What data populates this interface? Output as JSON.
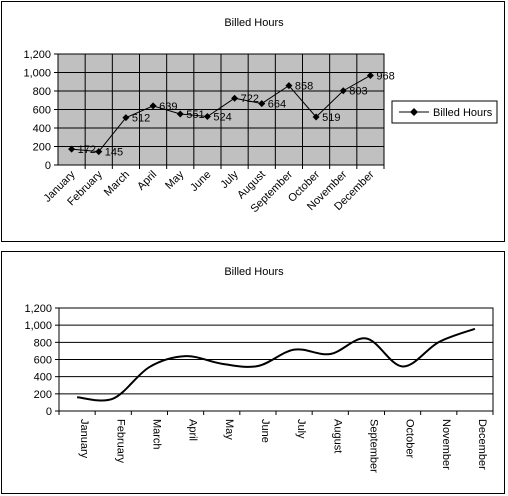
{
  "chart_data": [
    {
      "type": "line",
      "title": "Billed Hours",
      "categories": [
        "January",
        "February",
        "March",
        "April",
        "May",
        "June",
        "July",
        "August",
        "September",
        "October",
        "November",
        "December"
      ],
      "series": [
        {
          "name": "Billed Hours",
          "values": [
            172,
            145,
            512,
            639,
            551,
            524,
            722,
            664,
            858,
            519,
            803,
            968
          ]
        }
      ],
      "data_labels": [
        "172",
        "145",
        "512",
        "639",
        "551",
        "524",
        "722",
        "664",
        "858",
        "519",
        "803",
        "968"
      ],
      "yticks": [
        "0",
        "200",
        "400",
        "600",
        "800",
        "1,000",
        "1,200"
      ],
      "ylim": [
        0,
        1200
      ],
      "grid": "major-both",
      "plot_area_color": "#c0c0c0",
      "series_color": "#000000",
      "marker": "diamond",
      "legend": "right",
      "legend_label": "Billed Hours"
    },
    {
      "type": "line",
      "title": "Billed Hours",
      "categories": [
        "January",
        "February",
        "March",
        "April",
        "May",
        "June",
        "July",
        "August",
        "September",
        "October",
        "November",
        "December"
      ],
      "series": [
        {
          "values": [
            160,
            145,
            512,
            639,
            551,
            524,
            715,
            664,
            845,
            519,
            803,
            958
          ]
        }
      ],
      "yticks": [
        "0",
        "200",
        "400",
        "600",
        "800",
        "1,000",
        "1,200"
      ],
      "ylim": [
        0,
        1200
      ],
      "grid": "major-horizontal",
      "plot_area_color": "#ffffff",
      "series_color": "#000000",
      "smooth": true,
      "legend": "none"
    }
  ]
}
